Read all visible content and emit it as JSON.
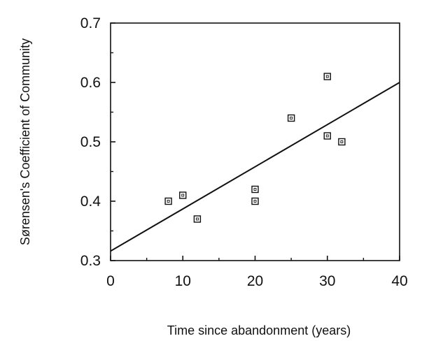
{
  "chart_data": {
    "type": "scatter",
    "xlabel": "Time since abandonment (years)",
    "ylabel": "Sørensen's Coefficient of Community",
    "xlim": [
      0,
      40
    ],
    "ylim": [
      0.3,
      0.7
    ],
    "x_ticks": [
      "0",
      "10",
      "20",
      "30",
      "40"
    ],
    "y_ticks": [
      "0.3",
      "0.4",
      "0.5",
      "0.6",
      "0.7"
    ],
    "grid": false,
    "legend": "none",
    "series": [
      {
        "marker": "open-square",
        "x": [
          8,
          10,
          12,
          20,
          20,
          25,
          30,
          30,
          32
        ],
        "y": [
          0.4,
          0.41,
          0.37,
          0.42,
          0.4,
          0.54,
          0.61,
          0.51,
          0.5
        ]
      }
    ],
    "fit_line": {
      "x": [
        0,
        40
      ],
      "y": [
        0.316,
        0.6
      ]
    }
  },
  "colors": {
    "ink": "#111111",
    "background": "#ffffff"
  }
}
